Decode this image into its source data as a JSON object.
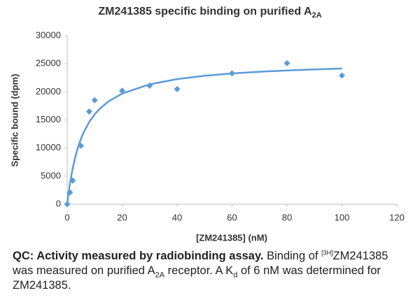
{
  "chart_data": {
    "type": "scatter",
    "title": "ZM241385 specific binding on purified A",
    "title_subscript": "2A",
    "x_label": "[ZM241385] (nM)",
    "y_label": "Specific bound (dpm)",
    "xlim": [
      0,
      120
    ],
    "xticks": [
      0,
      20,
      40,
      60,
      80,
      100,
      120
    ],
    "ylim": [
      0,
      30000
    ],
    "yticks": [
      0,
      5000,
      10000,
      15000,
      20000,
      25000,
      30000
    ],
    "grid": false,
    "series": [
      {
        "type": "scatter",
        "color": "#5b9bd5",
        "x": [
          0,
          1,
          2,
          5,
          8,
          10,
          20,
          30,
          40,
          60,
          80,
          100
        ],
        "values": [
          0,
          2100,
          4200,
          10400,
          16500,
          18500,
          20200,
          21100,
          20500,
          23300,
          25100,
          22900
        ]
      },
      {
        "type": "line",
        "color": "#5b9bd5",
        "x": [
          0,
          0.5,
          1,
          2,
          3,
          4,
          5,
          6,
          8,
          10,
          12,
          15,
          20,
          30,
          40,
          50,
          60,
          70,
          80,
          90,
          100
        ],
        "values": [
          0,
          1969,
          3657,
          6400,
          8533,
          10240,
          11636,
          12800,
          14629,
          16000,
          17067,
          18286,
          19692,
          21333,
          22261,
          22857,
          23273,
          23579,
          23814,
          24000,
          24151
        ]
      }
    ]
  },
  "caption": [
    {
      "text": "QC: Activity measured by radiobinding assay.",
      "style": "bold"
    },
    {
      "text": " Binding of ",
      "style": "normal"
    },
    {
      "text": "[3H]",
      "style": "sup"
    },
    {
      "text": "ZM241385 was measured on purified A",
      "style": "normal"
    },
    {
      "text": "2A",
      "style": "sub"
    },
    {
      "text": " receptor. A K",
      "style": "normal"
    },
    {
      "text": "d",
      "style": "sub"
    },
    {
      "text": " of 6 nM was determined for ZM241385.",
      "style": "normal"
    }
  ]
}
